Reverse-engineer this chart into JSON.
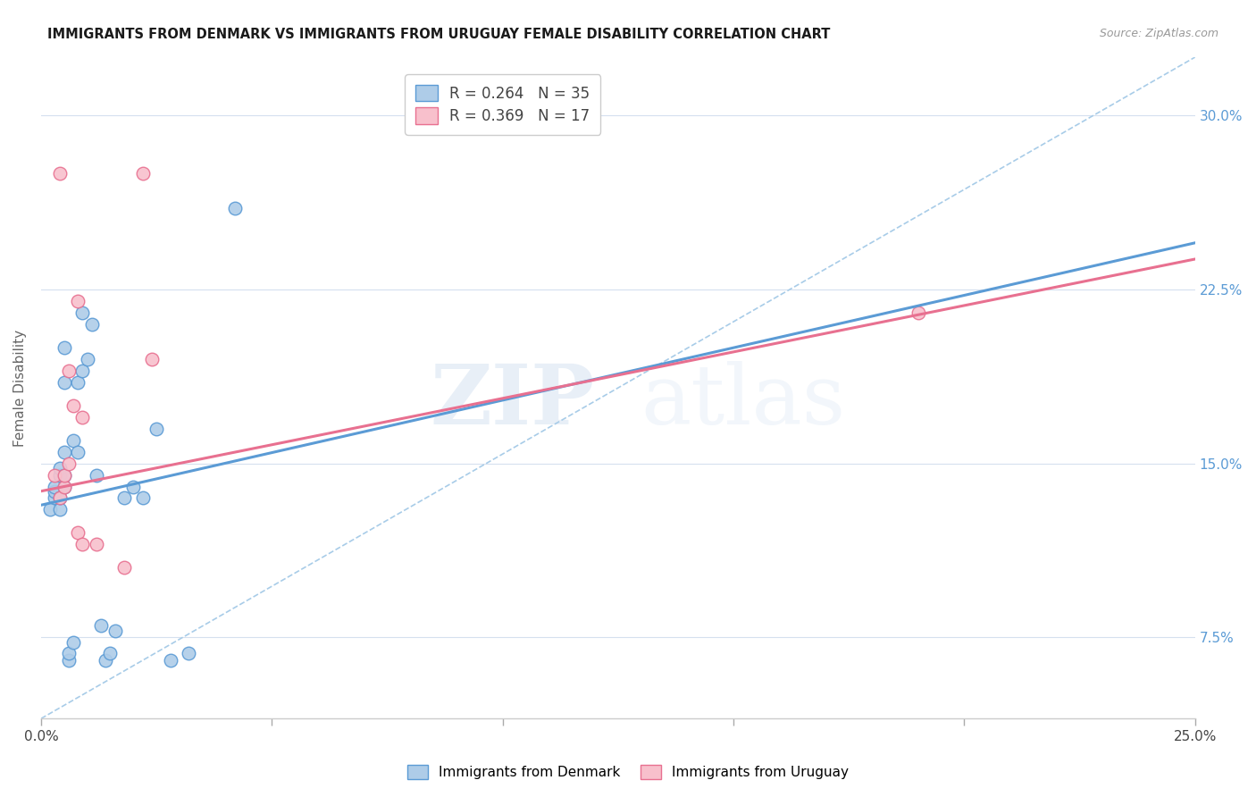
{
  "title": "IMMIGRANTS FROM DENMARK VS IMMIGRANTS FROM URUGUAY FEMALE DISABILITY CORRELATION CHART",
  "source": "Source: ZipAtlas.com",
  "ylabel": "Female Disability",
  "ytick_labels": [
    "7.5%",
    "15.0%",
    "22.5%",
    "30.0%"
  ],
  "ytick_values": [
    0.075,
    0.15,
    0.225,
    0.3
  ],
  "xlim": [
    0.0,
    0.25
  ],
  "ylim": [
    0.04,
    0.325
  ],
  "legend_r1": "R = 0.264   N = 35",
  "legend_r2": "R = 0.369   N = 17",
  "watermark_zip": "ZIP",
  "watermark_atlas": "atlas",
  "denmark_color": "#aecce8",
  "uruguay_color": "#f8c0cc",
  "denmark_edge_color": "#5b9bd5",
  "uruguay_edge_color": "#e87090",
  "denmark_line_color": "#5b9bd5",
  "uruguay_line_color": "#e87090",
  "dashed_line_color": "#a8cce8",
  "denmark_scatter_x": [
    0.002,
    0.003,
    0.003,
    0.003,
    0.004,
    0.004,
    0.004,
    0.004,
    0.005,
    0.005,
    0.005,
    0.005,
    0.005,
    0.006,
    0.006,
    0.007,
    0.007,
    0.008,
    0.008,
    0.009,
    0.009,
    0.01,
    0.011,
    0.012,
    0.013,
    0.014,
    0.015,
    0.016,
    0.018,
    0.02,
    0.022,
    0.025,
    0.028,
    0.032,
    0.042
  ],
  "denmark_scatter_y": [
    0.13,
    0.135,
    0.138,
    0.14,
    0.13,
    0.135,
    0.145,
    0.148,
    0.14,
    0.145,
    0.155,
    0.185,
    0.2,
    0.065,
    0.068,
    0.073,
    0.16,
    0.155,
    0.185,
    0.19,
    0.215,
    0.195,
    0.21,
    0.145,
    0.08,
    0.065,
    0.068,
    0.078,
    0.135,
    0.14,
    0.135,
    0.165,
    0.065,
    0.068,
    0.26
  ],
  "uruguay_scatter_x": [
    0.003,
    0.004,
    0.004,
    0.005,
    0.005,
    0.006,
    0.006,
    0.007,
    0.008,
    0.008,
    0.009,
    0.009,
    0.012,
    0.018,
    0.022,
    0.024,
    0.19
  ],
  "uruguay_scatter_y": [
    0.145,
    0.275,
    0.135,
    0.14,
    0.145,
    0.15,
    0.19,
    0.175,
    0.12,
    0.22,
    0.115,
    0.17,
    0.115,
    0.105,
    0.275,
    0.195,
    0.215
  ],
  "denmark_line_x": [
    0.0,
    0.25
  ],
  "denmark_line_y": [
    0.132,
    0.245
  ],
  "uruguay_line_x": [
    0.0,
    0.25
  ],
  "uruguay_line_y": [
    0.138,
    0.238
  ],
  "dashed_line_x": [
    0.0,
    0.25
  ],
  "dashed_line_y": [
    0.04,
    0.325
  ],
  "xtick_positions": [
    0.0,
    0.05,
    0.1,
    0.15,
    0.2,
    0.25
  ],
  "xtick_minor_positions": [
    0.025,
    0.075,
    0.125,
    0.175,
    0.225
  ],
  "bottom_legend_labels": [
    "Immigrants from Denmark",
    "Immigrants from Uruguay"
  ]
}
